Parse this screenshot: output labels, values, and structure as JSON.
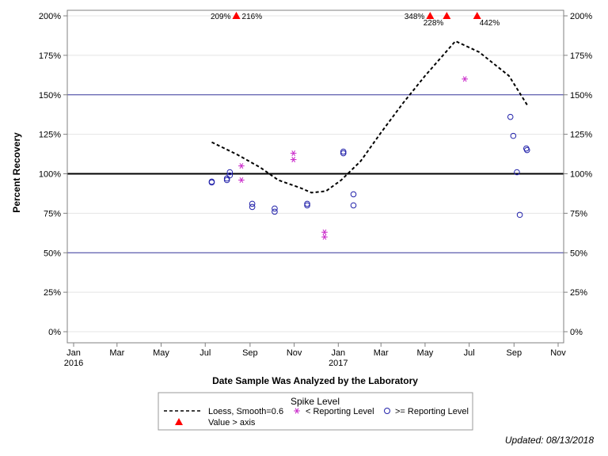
{
  "chart_data": {
    "type": "scatter",
    "ylabel": "Percent Recovery",
    "xlabel": "Date Sample Was Analyzed by the Laboratory",
    "ylim": [
      0,
      200
    ],
    "yticks": [
      0,
      25,
      50,
      75,
      100,
      125,
      150,
      175,
      200
    ],
    "ytick_suffix": "%",
    "xlim": [
      "2015-12-15",
      "2017-11-20"
    ],
    "xticks": [
      {
        "date": "2016-01-01",
        "label": "Jan",
        "year": "2016"
      },
      {
        "date": "2016-03-01",
        "label": "Mar",
        "year": ""
      },
      {
        "date": "2016-05-01",
        "label": "May",
        "year": ""
      },
      {
        "date": "2016-07-01",
        "label": "Jul",
        "year": ""
      },
      {
        "date": "2016-09-01",
        "label": "Sep",
        "year": ""
      },
      {
        "date": "2016-11-01",
        "label": "Nov",
        "year": ""
      },
      {
        "date": "2017-01-01",
        "label": "Jan",
        "year": "2017"
      },
      {
        "date": "2017-03-01",
        "label": "Mar",
        "year": ""
      },
      {
        "date": "2017-05-01",
        "label": "May",
        "year": ""
      },
      {
        "date": "2017-07-01",
        "label": "Jul",
        "year": ""
      },
      {
        "date": "2017-09-01",
        "label": "Sep",
        "year": ""
      },
      {
        "date": "2017-11-01",
        "label": "Nov",
        "year": ""
      }
    ],
    "grid": true,
    "reference_lines": [
      {
        "y": 50,
        "color": "#3a3aa0",
        "width": 1
      },
      {
        "y": 100,
        "color": "#000000",
        "width": 2
      },
      {
        "y": 150,
        "color": "#3a3aa0",
        "width": 1
      }
    ],
    "series": [
      {
        "name": "Loess, Smooth=0.6",
        "kind": "line",
        "color": "#000000",
        "points": [
          [
            "2016-07-10",
            120
          ],
          [
            "2016-08-15",
            112
          ],
          [
            "2016-09-15",
            104
          ],
          [
            "2016-10-10",
            96
          ],
          [
            "2016-11-10",
            91
          ],
          [
            "2016-11-25",
            88
          ],
          [
            "2016-12-15",
            89
          ],
          [
            "2017-01-05",
            96
          ],
          [
            "2017-02-01",
            108
          ],
          [
            "2017-03-01",
            126
          ],
          [
            "2017-04-01",
            145
          ],
          [
            "2017-05-01",
            162
          ],
          [
            "2017-06-12",
            184
          ],
          [
            "2017-07-15",
            177
          ],
          [
            "2017-08-25",
            162
          ],
          [
            "2017-09-20",
            143
          ]
        ]
      },
      {
        "name": "< Reporting Level",
        "kind": "star",
        "color": "#cc33cc",
        "points": [
          [
            "2016-08-20",
            105
          ],
          [
            "2016-08-20",
            96
          ],
          [
            "2016-10-31",
            113
          ],
          [
            "2016-10-31",
            109
          ],
          [
            "2016-12-13",
            63
          ],
          [
            "2016-12-13",
            60
          ],
          [
            "2017-06-25",
            160
          ]
        ]
      },
      {
        "name": ">= Reporting Level",
        "kind": "circle",
        "color": "#2222aa",
        "points": [
          [
            "2016-07-10",
            95
          ],
          [
            "2016-07-10",
            94.5
          ],
          [
            "2016-07-31",
            97
          ],
          [
            "2016-07-31",
            96
          ],
          [
            "2016-08-04",
            101
          ],
          [
            "2016-08-04",
            99
          ],
          [
            "2016-09-04",
            81
          ],
          [
            "2016-09-04",
            79
          ],
          [
            "2016-10-05",
            78
          ],
          [
            "2016-10-05",
            76
          ],
          [
            "2016-11-19",
            81
          ],
          [
            "2016-11-19",
            80
          ],
          [
            "2017-01-08",
            114
          ],
          [
            "2017-01-08",
            113
          ],
          [
            "2017-01-22",
            87
          ],
          [
            "2017-01-22",
            80
          ],
          [
            "2017-08-27",
            136
          ],
          [
            "2017-08-31",
            124
          ],
          [
            "2017-09-05",
            101
          ],
          [
            "2017-09-09",
            74
          ],
          [
            "2017-09-18",
            116
          ],
          [
            "2017-09-19",
            115
          ]
        ]
      },
      {
        "name": "Value > axis",
        "kind": "triangle",
        "color": "#ff0000",
        "points": [
          [
            "2016-08-13",
            209,
            "209%",
            "left"
          ],
          [
            "2016-08-13",
            216,
            "216%",
            "right"
          ],
          [
            "2017-05-08",
            348,
            "348%",
            "left"
          ],
          [
            "2017-05-31",
            228,
            "228%",
            "below-left"
          ],
          [
            "2017-07-12",
            442,
            "442%",
            "below-right"
          ]
        ]
      }
    ],
    "legend": {
      "title": "Spike Level",
      "placement": "bottom",
      "items": [
        {
          "label": "Loess, Smooth=0.6",
          "symbol": "dash-line"
        },
        {
          "label": "< Reporting Level",
          "symbol": "star"
        },
        {
          "label": ">= Reporting Level",
          "symbol": "circle"
        },
        {
          "label": "Value > axis",
          "symbol": "triangle"
        }
      ]
    },
    "footnote": "Updated: 08/13/2018"
  }
}
